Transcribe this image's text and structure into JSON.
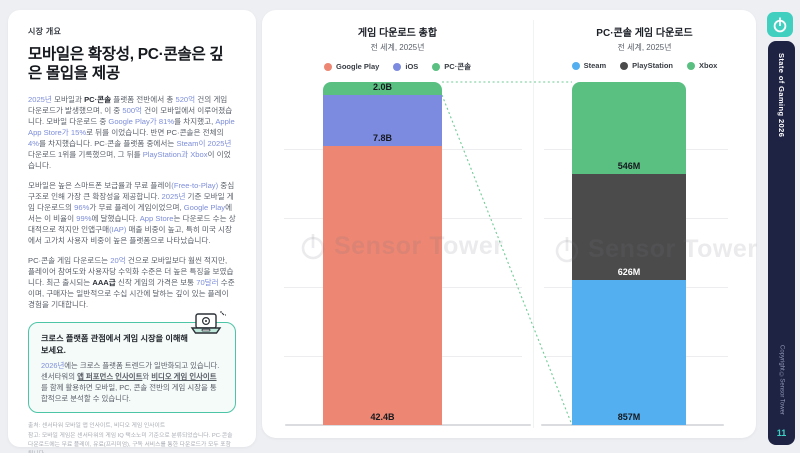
{
  "sidebar": {
    "eyebrow": "시장 개요",
    "heading": "모바일은 확장성, PC·콘솔은 깊은 몰입을 제공",
    "paragraphs": [
      [
        {
          "t": "2025년",
          "s": "b"
        },
        {
          "t": " 모바일과 ",
          "s": "n"
        },
        {
          "t": "PC·콘솔",
          "s": "d"
        },
        {
          "t": " 플랫폼 전반에서 총 ",
          "s": "n"
        },
        {
          "t": "520억",
          "s": "b"
        },
        {
          "t": " 건의 게임 다운로드가 발생했으며, 이 중 ",
          "s": "n"
        },
        {
          "t": "500억",
          "s": "b"
        },
        {
          "t": " 건이 모바일에서 이루어졌습니다. 모바일 다운로드 중 ",
          "s": "n"
        },
        {
          "t": "Google Play가 81%",
          "s": "b"
        },
        {
          "t": "를 차지했고, ",
          "s": "n"
        },
        {
          "t": "Apple App Store가 15%",
          "s": "b"
        },
        {
          "t": "로 뒤를 이었습니다. 반면 PC·콘솔은 전체의 ",
          "s": "n"
        },
        {
          "t": "4%",
          "s": "b"
        },
        {
          "t": "를 차지했습니다. PC·콘솔 플랫폼 중에서는 ",
          "s": "n"
        },
        {
          "t": "Steam이 2025년",
          "s": "b"
        },
        {
          "t": " 다운로드 1위를 기록했으며, 그 뒤를 ",
          "s": "n"
        },
        {
          "t": "PlayStation과 Xbox",
          "s": "b"
        },
        {
          "t": "이 이었습니다.",
          "s": "n"
        }
      ],
      [
        {
          "t": "모바일은 높은 스마트폰 보급률과 무료 플레이",
          "s": "n"
        },
        {
          "t": "(Free-to-Play)",
          "s": "b"
        },
        {
          "t": " 중심 구조로 인해 가장 큰 확장성을 제공합니다. ",
          "s": "n"
        },
        {
          "t": "2025년",
          "s": "b"
        },
        {
          "t": " 기준 모바일 게임 다운로드의 ",
          "s": "n"
        },
        {
          "t": "96%",
          "s": "b"
        },
        {
          "t": "가 무료 플레이 게임이었으며, ",
          "s": "n"
        },
        {
          "t": "Google Play",
          "s": "b"
        },
        {
          "t": "에서는 이 비율이 ",
          "s": "n"
        },
        {
          "t": "99%",
          "s": "b"
        },
        {
          "t": "에 달했습니다. ",
          "s": "n"
        },
        {
          "t": "App Store",
          "s": "b"
        },
        {
          "t": "는 다운로드 수는 상대적으로 적지만 인앱구매",
          "s": "n"
        },
        {
          "t": "(IAP)",
          "s": "b"
        },
        {
          "t": " 매출 비중이 높고, 특히 미국 시장에서 고가치 사용자 비중이 높은 플랫폼으로 나타났습니다.",
          "s": "n"
        }
      ],
      [
        {
          "t": "PC·콘솔 게임 다운로드는 ",
          "s": "n"
        },
        {
          "t": "20억",
          "s": "b"
        },
        {
          "t": " 건으로 모바일보다 훨씬 적지만, 플레이어 참여도와 사용자당 수익화 수준은 더 높은 특징을 보였습니다. 최근 출시되는 ",
          "s": "n"
        },
        {
          "t": "AAA급",
          "s": "d"
        },
        {
          "t": " 신작 게임의 가격은 보통 ",
          "s": "n"
        },
        {
          "t": "70달러",
          "s": "b"
        },
        {
          "t": " 수준이며, 구매자는 일반적으로 수십 시간에 달하는 깊이 있는 플레이 경험을 기대합니다.",
          "s": "n"
        }
      ]
    ],
    "callout": {
      "title": "크로스 플랫폼 관점에서 게임 시장을 이해해 보세요.",
      "body": [
        {
          "t": "2026년",
          "s": "b"
        },
        {
          "t": "에는 크로스 플랫폼 트렌드가 일반화되고 있습니다. 센서타워의 ",
          "s": "n"
        },
        {
          "t": "앱 퍼포먼스 인사이트",
          "s": "link"
        },
        {
          "t": "와 ",
          "s": "n"
        },
        {
          "t": "비디오 게임 인사이트",
          "s": "link"
        },
        {
          "t": "를 함께 활용하면 모바일, PC, 콘솔 전반의 게임 시장을 통합적으로 분석할 수 있습니다.",
          "s": "n"
        }
      ]
    },
    "footnotes": [
      "출처: 센서타워 모바일 앱 인사이트, 비디오 게임 인사이트",
      "참고: 모바일 게임은 센서타워의 게임 IQ 택소노미 기준으로 분류되었습니다. PC·콘솔 다운로드에는 무료 플레이, 유료(프리미엄), 구독 서비스를 통한 다운로드가 모두 포함됩니다"
    ]
  },
  "chart_data": [
    {
      "type": "bar",
      "subtype": "stacked_single_bar",
      "title": "게임 다운로드 총합",
      "subtitle": "전 세계, 2025년",
      "unit": "billions of downloads",
      "total": 52.2,
      "legend": [
        {
          "label": "Google Play",
          "color": "#ed8672"
        },
        {
          "label": "iOS",
          "color": "#7c8be0"
        },
        {
          "label": "PC·콘솔",
          "color": "#59c081"
        }
      ],
      "segments_top_to_bottom": [
        {
          "name": "PC·콘솔",
          "label": "2.0B",
          "value": 2.0,
          "color": "#59c081"
        },
        {
          "name": "iOS",
          "label": "7.8B",
          "value": 7.8,
          "color": "#7c8be0"
        },
        {
          "name": "Google Play",
          "label": "42.4B",
          "value": 42.4,
          "color": "#ed8672"
        }
      ]
    },
    {
      "type": "bar",
      "subtype": "stacked_single_bar",
      "title": "PC·콘솔 게임 다운로드",
      "subtitle": "전 세계, 2025년",
      "unit": "millions of downloads",
      "total": 2029,
      "legend": [
        {
          "label": "Steam",
          "color": "#54aff0"
        },
        {
          "label": "PlayStation",
          "color": "#4b4b4b"
        },
        {
          "label": "Xbox",
          "color": "#59c081"
        }
      ],
      "segments_top_to_bottom": [
        {
          "name": "Xbox",
          "label": "546M",
          "value": 546,
          "color": "#59c081"
        },
        {
          "name": "PlayStation",
          "label": "626M",
          "value": 626,
          "color": "#4b4b4b",
          "label_color": "#ffffff"
        },
        {
          "name": "Steam",
          "label": "857M",
          "value": 857,
          "color": "#54aff0"
        }
      ]
    }
  ],
  "watermark": {
    "text": "Sensor Tower"
  },
  "rail": {
    "title": "State of Gaming 2026",
    "copyright": "Copyright ©Sensor Tower",
    "page_number": "11",
    "accent_color": "#41cfc0",
    "bg_color": "#1e2343"
  }
}
